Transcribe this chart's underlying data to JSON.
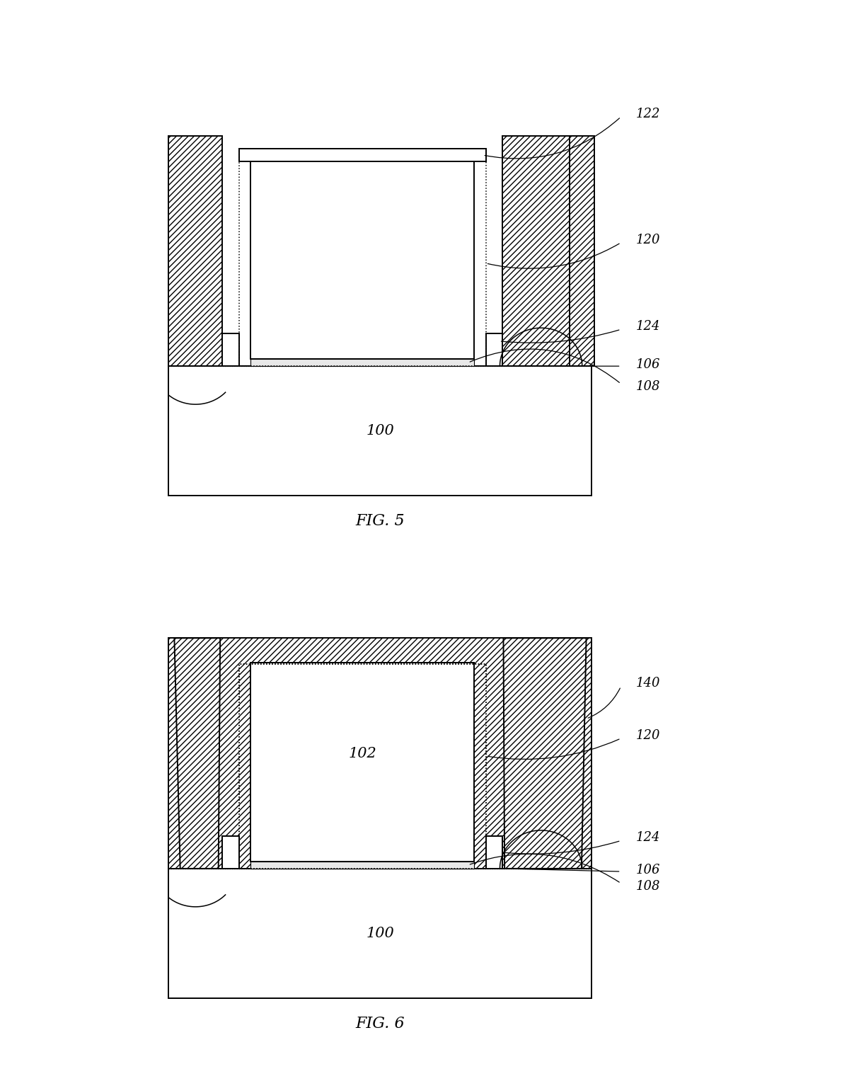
{
  "fig_width": 12.07,
  "fig_height": 15.1,
  "bg_color": "#ffffff",
  "lc": "#000000",
  "fig5_label": "FIG. 5",
  "fig6_label": "FIG. 6"
}
